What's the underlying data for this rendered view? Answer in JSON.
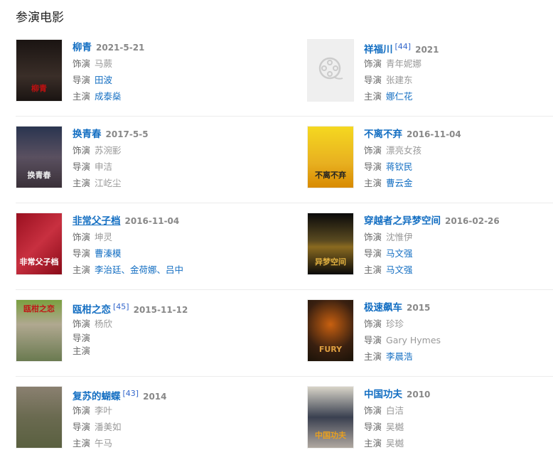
{
  "section_title": "参演电影",
  "labels": {
    "role": "饰演",
    "director": "导演",
    "lead": "主演"
  },
  "colors": {
    "link": "#136ec2",
    "date": "#888888",
    "label": "#666666",
    "plain_value": "#999999"
  },
  "movies": [
    {
      "title": "柳青",
      "date": "2021-5-21",
      "ref": "",
      "role": "马蕨",
      "role_link": false,
      "director": "田波",
      "director_link": true,
      "lead": "成泰燊",
      "lead_link": true,
      "poster": {
        "bg": "linear-gradient(#1a1412,#3a2e28 60%,#1a1412)",
        "text": "柳青",
        "text_color": "#c01010"
      }
    },
    {
      "title": "祥福川",
      "date": "2021",
      "ref": "[44]",
      "role": "青年妮娜",
      "role_link": false,
      "director": "张建东",
      "director_link": false,
      "lead": "娜仁花",
      "lead_link": true,
      "poster": {
        "placeholder": true,
        "icon": "film-reel-icon"
      }
    },
    {
      "title": "换青春",
      "date": "2017-5-5",
      "ref": "",
      "role": "苏涴彨",
      "role_link": false,
      "director": "申洁",
      "director_link": false,
      "lead": "江屹尘",
      "lead_link": false,
      "poster": {
        "bg": "linear-gradient(#2a3550,#5a5060 50%,#3a3038)",
        "text": "换青春",
        "text_color": "#eee"
      }
    },
    {
      "title": "不离不弃",
      "date": "2016-11-04",
      "ref": "",
      "role": "漂亮女孩",
      "role_link": false,
      "director": "蒋钦民",
      "director_link": true,
      "lead": "曹云金",
      "lead_link": true,
      "poster": {
        "bg": "linear-gradient(#f5d820,#e8b020 60%,#d88a00)",
        "text": "不离不弃",
        "text_color": "#222"
      }
    },
    {
      "title": "非常父子档",
      "date": "2016-11-04",
      "ref": "",
      "role": "坤灵",
      "role_link": false,
      "director": "曹溱模",
      "director_link": true,
      "lead": "李治廷、金荷娜、吕中",
      "lead_link": true,
      "hover": true,
      "poster": {
        "bg": "linear-gradient(135deg,#9a1020,#c83040 50%,#8a0a18)",
        "text": "非常父子档",
        "text_color": "#fff"
      }
    },
    {
      "title": "穿越者之异梦空间",
      "date": "2016-02-26",
      "ref": "",
      "role": "沈惟伊",
      "role_link": false,
      "director": "马文强",
      "director_link": true,
      "lead": "马文强",
      "lead_link": true,
      "poster": {
        "bg": "linear-gradient(#0a0a0a,#5a4a20 45%,#8a6a20 55%,#0a0a0a)",
        "text": "异梦空间",
        "text_color": "#e0b040"
      }
    },
    {
      "title": "瓯柑之恋",
      "date": "2015-11-12",
      "ref": "[45]",
      "role": "杨欣",
      "role_link": false,
      "director": "",
      "director_link": false,
      "lead": "",
      "lead_link": false,
      "compact": true,
      "poster": {
        "bg": "linear-gradient(#7aa040,#b0a890 40%,#6a7a50)",
        "text": "瓯柑之恋",
        "text_color": "#c01818",
        "text_top": true
      }
    },
    {
      "title": "极速飙车",
      "date": "2015",
      "ref": "",
      "role": "珍珍",
      "role_link": false,
      "director": "Gary Hymes",
      "director_link": false,
      "lead": "李晨浩",
      "lead_link": true,
      "poster": {
        "bg": "radial-gradient(circle at 50% 40%,#c86010,#3a2010 60%,#1a1208)",
        "text": "FURY",
        "text_color": "#e0a040"
      }
    },
    {
      "title": "复苏的蝴蝶",
      "date": "2014",
      "ref": "[43]",
      "role": "李叶",
      "role_link": false,
      "director": "潘美如",
      "director_link": false,
      "lead": "午马",
      "lead_link": false,
      "poster": {
        "bg": "linear-gradient(#8a8070,#6a6a50 50%,#5a6040)",
        "text": "",
        "text_color": "#fff"
      }
    },
    {
      "title": "中国功夫",
      "date": "2010",
      "ref": "",
      "role": "白洁",
      "role_link": false,
      "director": "吴樾",
      "director_link": false,
      "lead": "吴樾",
      "lead_link": false,
      "poster": {
        "bg": "linear-gradient(#d8d4c8,#3a4050 50%,#b0a8a0)",
        "text": "中国功夫",
        "text_color": "#e8a020"
      }
    }
  ]
}
